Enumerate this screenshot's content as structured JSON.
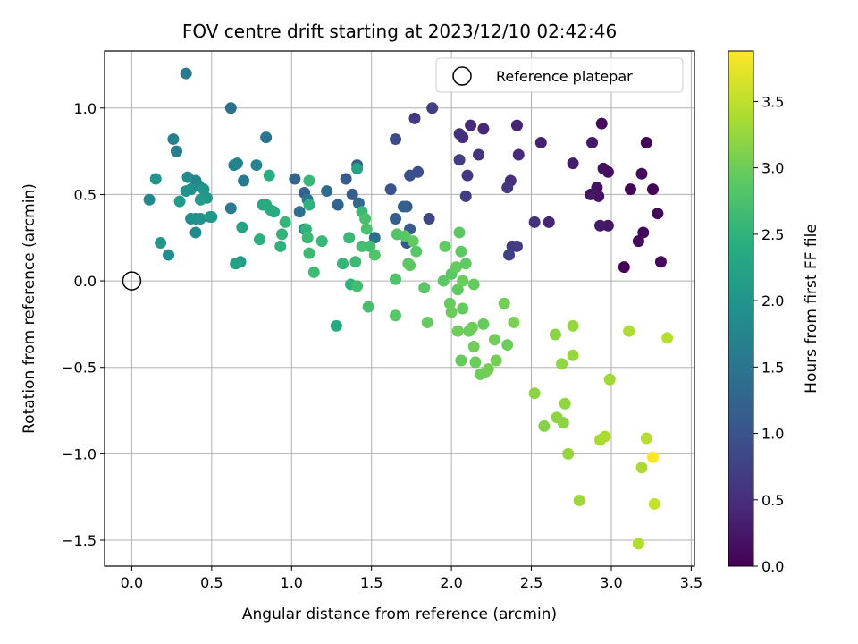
{
  "chart_data": {
    "type": "scatter",
    "title": "FOV centre drift starting at 2023/12/10 02:42:46",
    "xlabel": "Angular distance from reference (arcmin)",
    "ylabel": "Rotation from reference (arcmin)",
    "xlim": [
      -0.17,
      3.52
    ],
    "ylim": [
      -1.65,
      1.33
    ],
    "xticks": [
      0.0,
      0.5,
      1.0,
      1.5,
      2.0,
      2.5,
      3.0,
      3.5
    ],
    "xtick_labels": [
      "0.0",
      "0.5",
      "1.0",
      "1.5",
      "2.0",
      "2.5",
      "3.0",
      "3.5"
    ],
    "yticks": [
      -1.5,
      -1.0,
      -0.5,
      0.0,
      0.5,
      1.0
    ],
    "ytick_labels": [
      "−1.5",
      "−1.0",
      "−0.5",
      "0.0",
      "0.5",
      "1.0"
    ],
    "grid": true,
    "legend": {
      "position": "top-right",
      "entries": [
        "Reference platepar"
      ]
    },
    "colorbar": {
      "label": "Hours from first FF file",
      "colormap": "viridis",
      "range": [
        0.0,
        3.88
      ],
      "ticks": [
        0.0,
        0.5,
        1.0,
        1.5,
        2.0,
        2.5,
        3.0,
        3.5
      ],
      "tick_labels": [
        "0.0",
        "0.5",
        "1.0",
        "1.5",
        "2.0",
        "2.5",
        "3.0",
        "3.5"
      ]
    },
    "reference_point": {
      "name": "Reference platepar",
      "x": 0.0,
      "y": 0.0
    },
    "points": [
      [
        3.08,
        0.08,
        0.02
      ],
      [
        3.12,
        0.53,
        0.05
      ],
      [
        3.17,
        0.23,
        0.08
      ],
      [
        3.2,
        0.28,
        0.06
      ],
      [
        3.22,
        0.8,
        0.03
      ],
      [
        3.26,
        0.53,
        0.04
      ],
      [
        3.29,
        0.39,
        0.05
      ],
      [
        3.31,
        0.11,
        0.07
      ],
      [
        3.19,
        0.62,
        0.1
      ],
      [
        2.94,
        0.91,
        0.12
      ],
      [
        2.95,
        0.65,
        0.15
      ],
      [
        2.98,
        0.63,
        0.14
      ],
      [
        2.92,
        0.49,
        0.18
      ],
      [
        2.91,
        0.54,
        0.2
      ],
      [
        2.87,
        0.5,
        0.22
      ],
      [
        2.88,
        0.8,
        0.25
      ],
      [
        2.76,
        0.68,
        0.3
      ],
      [
        2.93,
        0.32,
        0.28
      ],
      [
        2.98,
        0.32,
        0.24
      ],
      [
        2.61,
        0.34,
        0.4
      ],
      [
        2.56,
        0.8,
        0.35
      ],
      [
        2.52,
        0.34,
        0.55
      ],
      [
        2.42,
        0.73,
        0.45
      ],
      [
        2.41,
        0.9,
        0.38
      ],
      [
        2.37,
        0.58,
        0.5
      ],
      [
        2.35,
        0.54,
        0.6
      ],
      [
        2.38,
        0.2,
        0.65
      ],
      [
        2.41,
        0.2,
        0.7
      ],
      [
        2.36,
        0.15,
        0.75
      ],
      [
        2.2,
        0.88,
        0.42
      ],
      [
        2.12,
        0.9,
        0.48
      ],
      [
        2.17,
        0.73,
        0.58
      ],
      [
        2.07,
        0.83,
        0.52
      ],
      [
        2.05,
        0.85,
        0.55
      ],
      [
        2.1,
        0.61,
        0.62
      ],
      [
        2.05,
        0.7,
        0.68
      ],
      [
        2.09,
        0.49,
        0.72
      ],
      [
        1.88,
        1.0,
        0.72
      ],
      [
        1.77,
        0.94,
        0.66
      ],
      [
        1.86,
        0.36,
        0.8
      ],
      [
        1.65,
        0.82,
        0.88
      ],
      [
        1.79,
        0.63,
        0.9
      ],
      [
        1.74,
        0.61,
        0.95
      ],
      [
        1.62,
        0.53,
        1.0
      ],
      [
        1.72,
        0.43,
        1.05
      ],
      [
        1.74,
        0.3,
        1.1
      ],
      [
        1.7,
        0.43,
        1.2
      ],
      [
        1.65,
        0.36,
        1.15
      ],
      [
        1.72,
        0.22,
        1.08
      ],
      [
        1.52,
        0.25,
        1.4
      ],
      [
        1.38,
        0.5,
        1.1
      ],
      [
        1.42,
        0.45,
        1.3
      ],
      [
        1.34,
        0.59,
        1.12
      ],
      [
        1.41,
        0.67,
        1.18
      ],
      [
        1.29,
        0.44,
        1.25
      ],
      [
        1.22,
        0.52,
        1.35
      ],
      [
        1.08,
        0.51,
        1.2
      ],
      [
        1.1,
        0.47,
        1.5
      ],
      [
        1.05,
        0.4,
        1.45
      ],
      [
        1.02,
        0.59,
        1.28
      ],
      [
        1.08,
        0.3,
        1.55
      ],
      [
        0.62,
        1.0,
        1.4
      ],
      [
        0.34,
        1.2,
        1.6
      ],
      [
        0.84,
        0.83,
        1.5
      ],
      [
        0.26,
        0.82,
        1.68
      ],
      [
        0.28,
        0.75,
        1.65
      ],
      [
        0.64,
        0.67,
        1.62
      ],
      [
        0.66,
        0.68,
        1.7
      ],
      [
        0.78,
        0.67,
        1.72
      ],
      [
        0.7,
        0.58,
        1.58
      ],
      [
        0.4,
        0.58,
        1.75
      ],
      [
        0.42,
        0.55,
        1.8
      ],
      [
        0.35,
        0.6,
        1.85
      ],
      [
        0.37,
        0.53,
        1.9
      ],
      [
        0.34,
        0.52,
        1.95
      ],
      [
        0.45,
        0.53,
        2.0
      ],
      [
        0.47,
        0.48,
        2.05
      ],
      [
        0.43,
        0.47,
        2.1
      ],
      [
        0.3,
        0.46,
        2.1
      ],
      [
        0.11,
        0.47,
        1.78
      ],
      [
        0.15,
        0.59,
        2.0
      ],
      [
        0.62,
        0.42,
        1.6
      ],
      [
        0.4,
        0.36,
        1.85
      ],
      [
        0.37,
        0.36,
        1.92
      ],
      [
        0.43,
        0.36,
        1.98
      ],
      [
        0.49,
        0.37,
        2.15
      ],
      [
        0.5,
        0.37,
        2.02
      ],
      [
        0.4,
        0.28,
        1.82
      ],
      [
        0.18,
        0.22,
        2.05
      ],
      [
        0.23,
        0.15,
        1.88
      ],
      [
        0.68,
        0.11,
        2.1
      ],
      [
        0.65,
        0.1,
        2.2
      ],
      [
        0.69,
        0.31,
        2.25
      ],
      [
        0.82,
        0.44,
        2.3
      ],
      [
        0.84,
        0.44,
        2.35
      ],
      [
        0.87,
        0.41,
        2.4
      ],
      [
        0.89,
        0.4,
        2.38
      ],
      [
        0.86,
        0.61,
        2.42
      ],
      [
        0.8,
        0.24,
        2.45
      ],
      [
        0.93,
        0.2,
        2.5
      ],
      [
        0.94,
        0.27,
        2.52
      ],
      [
        0.96,
        0.34,
        2.55
      ],
      [
        1.11,
        0.44,
        2.48
      ],
      [
        1.11,
        0.58,
        2.58
      ],
      [
        1.09,
        0.3,
        2.5
      ],
      [
        1.1,
        0.25,
        2.6
      ],
      [
        1.11,
        0.16,
        2.62
      ],
      [
        1.14,
        0.05,
        2.65
      ],
      [
        1.19,
        0.23,
        2.58
      ],
      [
        1.28,
        -0.26,
        2.35
      ],
      [
        1.32,
        0.1,
        2.55
      ],
      [
        1.36,
        0.25,
        2.6
      ],
      [
        1.37,
        -0.02,
        2.5
      ],
      [
        1.4,
        0.11,
        2.62
      ],
      [
        1.41,
        0.65,
        2.2
      ],
      [
        1.41,
        -0.03,
        2.68
      ],
      [
        1.44,
        0.4,
        2.62
      ],
      [
        1.44,
        0.2,
        2.7
      ],
      [
        1.46,
        0.36,
        2.72
      ],
      [
        1.47,
        0.3,
        2.75
      ],
      [
        1.49,
        0.2,
        2.68
      ],
      [
        1.48,
        -0.15,
        2.7
      ],
      [
        1.52,
        0.15,
        2.8
      ],
      [
        1.65,
        0.01,
        2.78
      ],
      [
        1.65,
        -0.2,
        2.85
      ],
      [
        1.66,
        0.27,
        2.82
      ],
      [
        1.71,
        0.26,
        2.85
      ],
      [
        1.73,
        0.1,
        2.88
      ],
      [
        1.74,
        0.09,
        2.9
      ],
      [
        1.76,
        0.23,
        2.92
      ],
      [
        1.78,
        0.17,
        2.85
      ],
      [
        1.83,
        -0.04,
        2.88
      ],
      [
        1.85,
        -0.24,
        2.95
      ],
      [
        1.95,
        0.0,
        2.9
      ],
      [
        1.96,
        0.2,
        2.92
      ],
      [
        1.99,
        -0.13,
        2.95
      ],
      [
        2.0,
        0.04,
        2.88
      ],
      [
        2.0,
        -0.18,
        2.98
      ],
      [
        2.03,
        0.08,
        2.95
      ],
      [
        2.04,
        -0.05,
        2.92
      ],
      [
        2.04,
        -0.29,
        3.0
      ],
      [
        2.05,
        0.28,
        2.88
      ],
      [
        2.06,
        0.17,
        2.9
      ],
      [
        2.06,
        -0.46,
        2.95
      ],
      [
        2.07,
        0.0,
        2.98
      ],
      [
        2.07,
        -0.16,
        2.95
      ],
      [
        2.09,
        0.1,
        2.92
      ],
      [
        2.11,
        -0.29,
        2.98
      ],
      [
        2.13,
        -0.27,
        3.0
      ],
      [
        2.14,
        -0.38,
        3.02
      ],
      [
        2.14,
        -0.02,
        2.95
      ],
      [
        2.15,
        -0.47,
        2.98
      ],
      [
        2.18,
        -0.54,
        3.0
      ],
      [
        2.2,
        -0.25,
        2.96
      ],
      [
        2.21,
        -0.53,
        3.02
      ],
      [
        2.23,
        -0.51,
        3.05
      ],
      [
        2.27,
        -0.34,
        3.02
      ],
      [
        2.28,
        -0.46,
        3.04
      ],
      [
        2.33,
        -0.13,
        3.05
      ],
      [
        2.35,
        -0.37,
        3.0
      ],
      [
        2.39,
        -0.24,
        3.08
      ],
      [
        2.52,
        -0.65,
        3.2
      ],
      [
        2.58,
        -0.84,
        3.15
      ],
      [
        2.65,
        -0.31,
        3.18
      ],
      [
        2.66,
        -0.79,
        3.2
      ],
      [
        2.69,
        -0.48,
        3.22
      ],
      [
        2.7,
        -0.82,
        3.18
      ],
      [
        2.71,
        -0.71,
        3.22
      ],
      [
        2.73,
        -1.0,
        3.25
      ],
      [
        2.76,
        -0.26,
        3.24
      ],
      [
        2.76,
        -0.43,
        3.26
      ],
      [
        2.8,
        -1.27,
        3.3
      ],
      [
        2.93,
        -0.92,
        3.35
      ],
      [
        2.96,
        -0.9,
        3.38
      ],
      [
        2.99,
        -0.57,
        3.32
      ],
      [
        3.11,
        -0.29,
        3.4
      ],
      [
        3.17,
        -1.52,
        3.42
      ],
      [
        3.19,
        -1.08,
        3.38
      ],
      [
        3.22,
        -0.91,
        3.45
      ],
      [
        3.26,
        -1.02,
        3.88
      ],
      [
        3.27,
        -1.29,
        3.55
      ],
      [
        3.35,
        -0.33,
        3.45
      ]
    ]
  }
}
